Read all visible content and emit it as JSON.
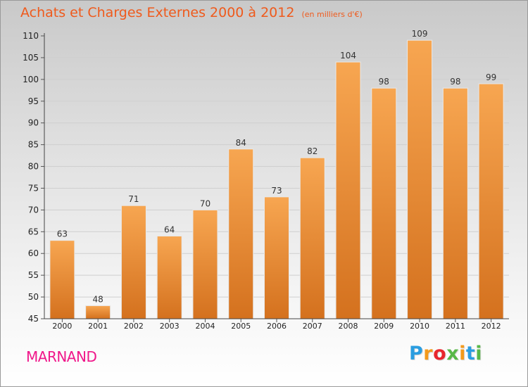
{
  "title": {
    "main": "Achats et Charges Externes 2000 à 2012",
    "unit": "(en milliers d'€)"
  },
  "town": "MARNAND",
  "brand": {
    "text": "Proxiti",
    "letters": [
      {
        "ch": "P",
        "color": "#2a9de0"
      },
      {
        "ch": "r",
        "color": "#f39a1c"
      },
      {
        "ch": "o",
        "color": "#e8262d"
      },
      {
        "ch": "x",
        "color": "#57b847"
      },
      {
        "ch": "i",
        "color": "#f39a1c"
      },
      {
        "ch": "t",
        "color": "#2a9de0"
      },
      {
        "ch": "i",
        "color": "#57b847"
      }
    ]
  },
  "colors": {
    "title": "#ef5a1c",
    "town": "#f0178a",
    "bar_top": "#f7a651",
    "bar_bottom": "#d4711e",
    "grid": "#cfcfcf"
  },
  "chart_data": {
    "type": "bar",
    "title": "Achats et Charges Externes 2000 à 2012",
    "subtitle": "(en milliers d'€)",
    "xlabel": "",
    "ylabel": "",
    "categories": [
      "2000",
      "2001",
      "2002",
      "2003",
      "2004",
      "2005",
      "2006",
      "2007",
      "2008",
      "2009",
      "2010",
      "2011",
      "2012"
    ],
    "values": [
      63,
      48,
      71,
      64,
      70,
      84,
      73,
      82,
      104,
      98,
      109,
      98,
      99
    ],
    "ylim": [
      45,
      110
    ],
    "yticks": [
      45,
      50,
      55,
      60,
      65,
      70,
      75,
      80,
      85,
      90,
      95,
      100,
      105,
      110
    ],
    "grid": true,
    "data_labels": true
  }
}
